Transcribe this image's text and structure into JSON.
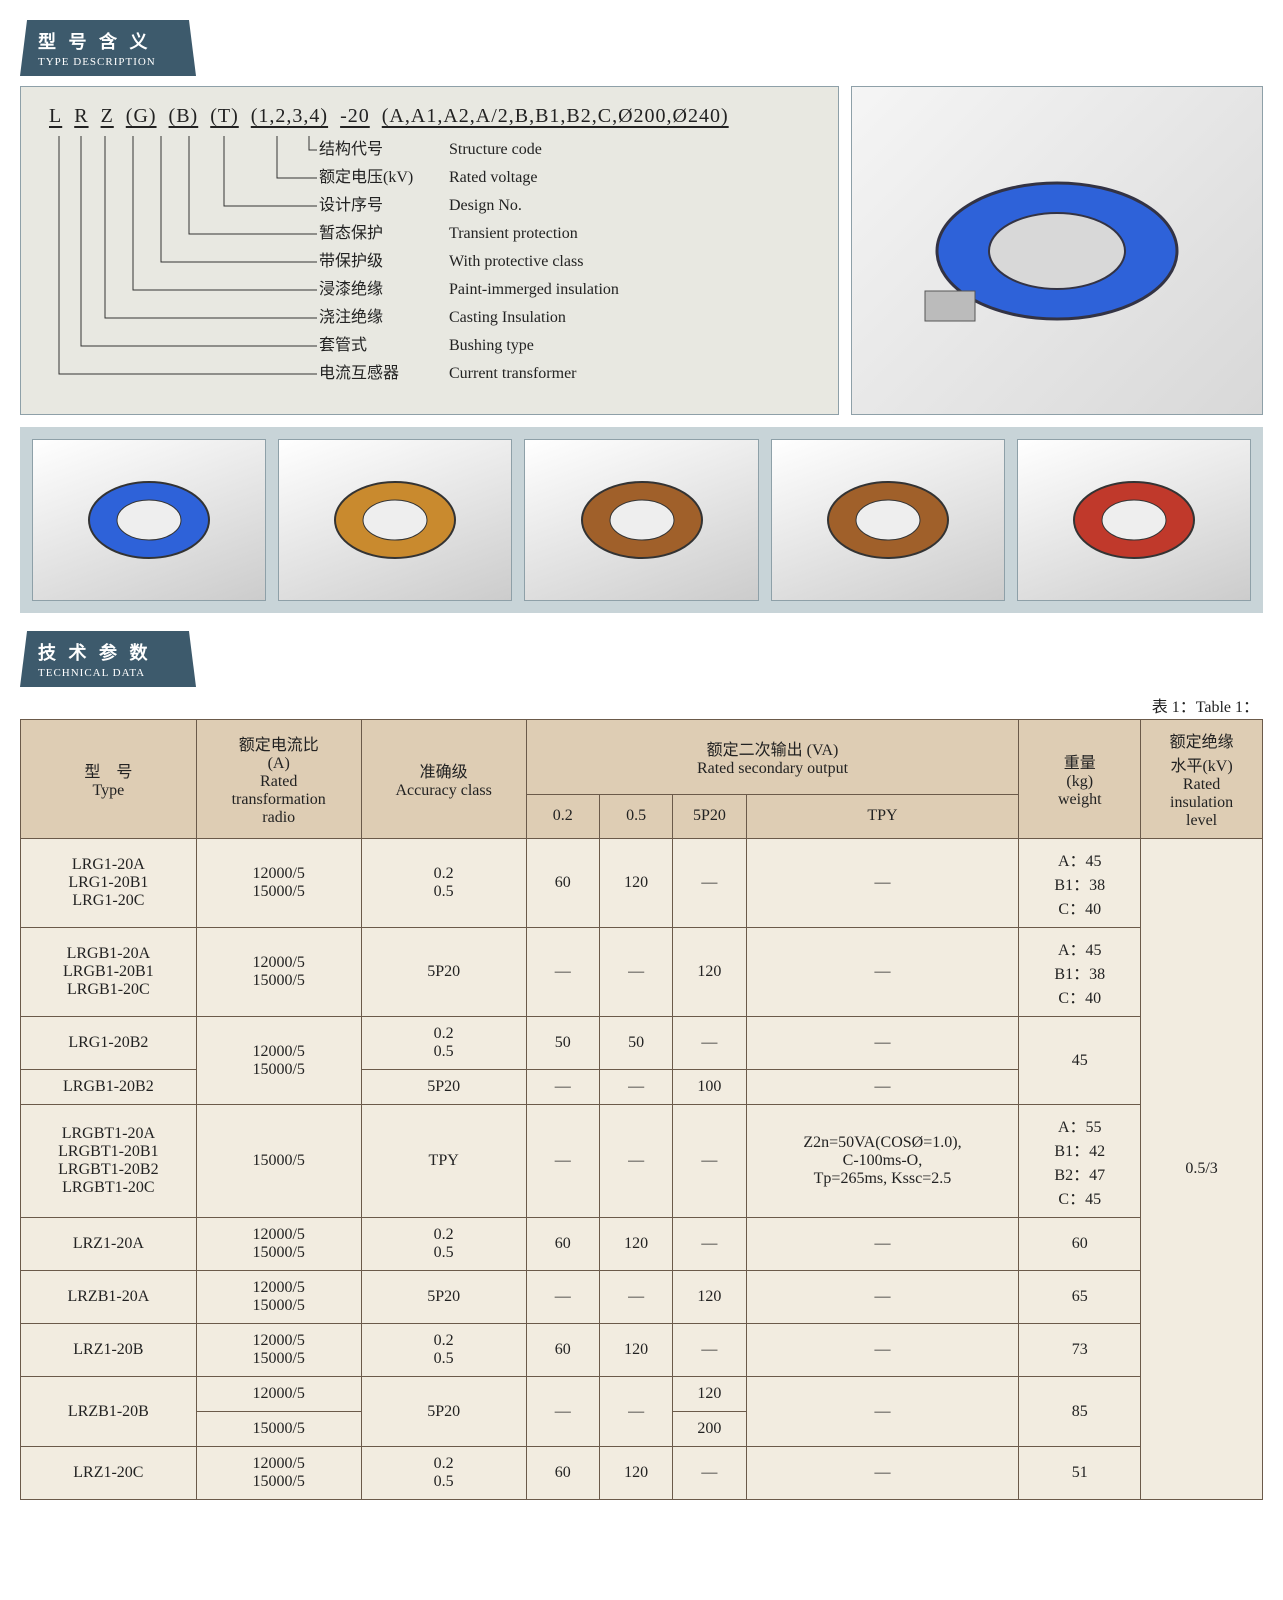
{
  "type_description": {
    "header_cn": "型 号 含 义",
    "header_en": "TYPE DESCRIPTION",
    "model_parts": [
      "L",
      "R",
      "Z",
      "(G)",
      "(B)",
      "(T)",
      "(1,2,3,4)",
      "-20",
      "(A,A1,A2,A/2,B,B1,B2,C,Ø200,Ø240)"
    ],
    "legend": [
      {
        "cn": "结构代号",
        "en": "Structure code"
      },
      {
        "cn": "额定电压(kV)",
        "en": "Rated voltage"
      },
      {
        "cn": "设计序号",
        "en": "Design No."
      },
      {
        "cn": "暂态保护",
        "en": "Transient protection"
      },
      {
        "cn": "带保护级",
        "en": "With protective class"
      },
      {
        "cn": "浸漆绝缘",
        "en": "Paint-immerged insulation"
      },
      {
        "cn": "浇注绝缘",
        "en": "Casting Insulation"
      },
      {
        "cn": "套管式",
        "en": "Bushing type"
      },
      {
        "cn": "电流互感器",
        "en": "Current transformer"
      }
    ],
    "main_image_label": "[product image]",
    "thumbs": [
      "[img]",
      "[img]",
      "[img]",
      "[img]",
      "[img]"
    ]
  },
  "technical": {
    "header_cn": "技 术 参 数",
    "header_en": "TECHNICAL DATA",
    "table_caption": "表 1：Table 1：",
    "columns": {
      "type": {
        "cn": "型　号",
        "en": "Type"
      },
      "ratio": {
        "cn": "额定电流比\n(A)",
        "en": "Rated\ntransformation\nradio"
      },
      "accuracy": {
        "cn": "准确级",
        "en": "Accuracy class"
      },
      "output": {
        "cn": "额定二次输出 (VA)",
        "en": "Rated secondary output"
      },
      "output_sub": [
        "0.2",
        "0.5",
        "5P20",
        "TPY"
      ],
      "weight": {
        "cn": "重量\n(kg)",
        "en": "weight"
      },
      "insul": {
        "cn": "额定绝缘\n水平(kV)",
        "en": "Rated\ninsulation\nlevel"
      }
    },
    "rows": [
      {
        "type": "LRG1-20A\nLRG1-20B1\nLRG1-20C",
        "ratio": "12000/5\n15000/5",
        "acc": "0.2\n0.5",
        "v02": "60",
        "v05": "120",
        "v5p": "—",
        "tpy": "—",
        "wt": "A：45\nB1：38\nC：40"
      },
      {
        "type": "LRGB1-20A\nLRGB1-20B1\nLRGB1-20C",
        "ratio": "12000/5\n15000/5",
        "acc": "5P20",
        "v02": "—",
        "v05": "—",
        "v5p": "120",
        "tpy": "—",
        "wt": "A：45\nB1：38\nC：40"
      },
      {
        "type": "LRG1-20B2",
        "ratio": "12000/5\n15000/5",
        "acc": "0.2\n0.5",
        "v02": "50",
        "v05": "50",
        "v5p": "—",
        "tpy": "—",
        "wt": "45",
        "ratio_rows": 2,
        "wt_rows": 2
      },
      {
        "type": "LRGB1-20B2",
        "acc": "5P20",
        "v02": "—",
        "v05": "—",
        "v5p": "100",
        "tpy": "—"
      },
      {
        "type": "LRGBT1-20A\nLRGBT1-20B1\nLRGBT1-20B2\nLRGBT1-20C",
        "ratio": "15000/5",
        "acc": "TPY",
        "v02": "—",
        "v05": "—",
        "v5p": "—",
        "tpy": "Z2n=50VA(COSØ=1.0),\nC-100ms-O,\nTp=265ms, Kssc=2.5",
        "wt": "A：55\nB1：42\nB2：47\nC：45"
      },
      {
        "type": "LRZ1-20A",
        "ratio": "12000/5\n15000/5",
        "acc": "0.2\n0.5",
        "v02": "60",
        "v05": "120",
        "v5p": "—",
        "tpy": "—",
        "wt": "60"
      },
      {
        "type": "LRZB1-20A",
        "ratio": "12000/5\n15000/5",
        "acc": "5P20",
        "v02": "—",
        "v05": "—",
        "v5p": "120",
        "tpy": "—",
        "wt": "65"
      },
      {
        "type": "LRZ1-20B",
        "ratio": "12000/5\n15000/5",
        "acc": "0.2\n0.5",
        "v02": "60",
        "v05": "120",
        "v5p": "—",
        "tpy": "—",
        "wt": "73"
      },
      {
        "type": "LRZB1-20B",
        "ratio": "12000/5",
        "acc": "5P20",
        "v02": "—",
        "v05": "—",
        "v5p": "120",
        "tpy": "—",
        "wt": "85",
        "type_rows": 2,
        "acc_rows": 2,
        "v02_rows": 2,
        "v05_rows": 2,
        "tpy_rows": 2,
        "wt_rows": 2
      },
      {
        "ratio": "15000/5",
        "v5p": "200"
      },
      {
        "type": "LRZ1-20C",
        "ratio": "12000/5\n15000/5",
        "acc": "0.2\n0.5",
        "v02": "60",
        "v05": "120",
        "v5p": "—",
        "tpy": "—",
        "wt": "51"
      }
    ],
    "insulation_value": "0.5/3"
  },
  "colors": {
    "header_bg": "#3d5a6c",
    "panel_bg": "#e8e8e1",
    "thumb_strip_bg": "#c8d4d8",
    "th_bg": "#decdb4",
    "td_bg": "#f2ece0",
    "border": "#6b5a4a"
  }
}
